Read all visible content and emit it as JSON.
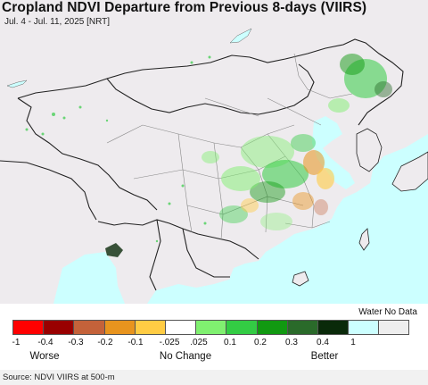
{
  "header": {
    "title": "Cropland NDVI Departure from Previous 8-days (VIIRS)",
    "subtitle": "Jul. 4 - Jul. 11, 2025 [NRT]"
  },
  "legend": {
    "no_data_label": "Water No Data",
    "ticks": [
      "-1",
      "-0.4",
      "-0.3",
      "-0.2",
      "-0.1",
      "-.025",
      ".025",
      "0.1",
      "0.2",
      "0.3",
      "0.4",
      "1"
    ],
    "categories": {
      "worse": "Worse",
      "no_change": "No Change",
      "better": "Better"
    },
    "colors": [
      "#ff0000",
      "#990000",
      "#c4623a",
      "#e8941e",
      "#ffcc44",
      "#ffffff",
      "#80f070",
      "#33cc44",
      "#119911",
      "#2a6a2a",
      "#0a2a0a",
      "#ccffff",
      "#eeeeee"
    ]
  },
  "map": {
    "land_color": "#eeebee",
    "water_color": "#ccffff",
    "border_color": "#222222",
    "province_color": "#888888"
  },
  "footer": {
    "source": "Source: NDVI VIIRS at 500-m"
  }
}
